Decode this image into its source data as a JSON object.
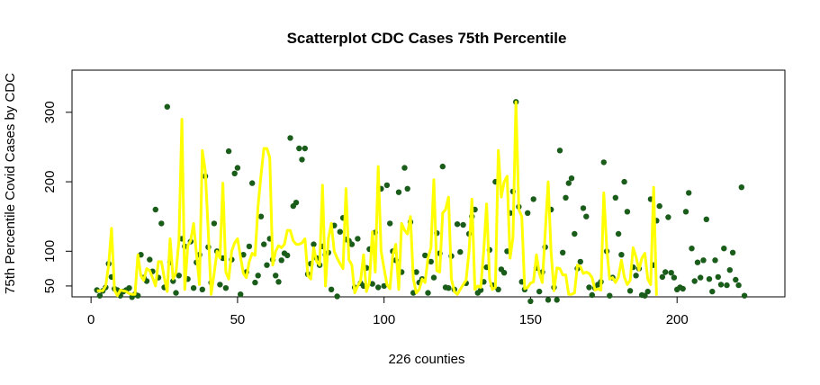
{
  "chart_data": {
    "type": "scatter",
    "title": "Scatterplot CDC Cases 75th Percentile",
    "xlabel": "226 counties",
    "ylabel": "75th Percentile Covid Cases by CDC",
    "xlim": [
      1,
      226
    ],
    "ylim": [
      35,
      316
    ],
    "xticks": [
      0,
      50,
      100,
      150,
      200
    ],
    "yticks": [
      50,
      100,
      200,
      300
    ],
    "grid": false,
    "point_color": "#1a5c1a",
    "line_color": "#ffff00",
    "points": [
      [
        2,
        44
      ],
      [
        3,
        36
      ],
      [
        4,
        43
      ],
      [
        5,
        48
      ],
      [
        6,
        82
      ],
      [
        7,
        63
      ],
      [
        8,
        46
      ],
      [
        9,
        44
      ],
      [
        10,
        36
      ],
      [
        11,
        42
      ],
      [
        12,
        44
      ],
      [
        13,
        47
      ],
      [
        14,
        34
      ],
      [
        15,
        38
      ],
      [
        16,
        36
      ],
      [
        17,
        95
      ],
      [
        18,
        62
      ],
      [
        19,
        57
      ],
      [
        20,
        88
      ],
      [
        21,
        71
      ],
      [
        22,
        160
      ],
      [
        23,
        62
      ],
      [
        24,
        140
      ],
      [
        25,
        48
      ],
      [
        26,
        308
      ],
      [
        27,
        84
      ],
      [
        28,
        57
      ],
      [
        29,
        40
      ],
      [
        30,
        65
      ],
      [
        31,
        118
      ],
      [
        32,
        107
      ],
      [
        33,
        60
      ],
      [
        34,
        114
      ],
      [
        35,
        47
      ],
      [
        36,
        84
      ],
      [
        37,
        95
      ],
      [
        38,
        45
      ],
      [
        39,
        208
      ],
      [
        40,
        106
      ],
      [
        41,
        55
      ],
      [
        42,
        140
      ],
      [
        43,
        100
      ],
      [
        44,
        52
      ],
      [
        45,
        90
      ],
      [
        46,
        47
      ],
      [
        47,
        244
      ],
      [
        48,
        88
      ],
      [
        49,
        212
      ],
      [
        50,
        220
      ],
      [
        51,
        38
      ],
      [
        52,
        95
      ],
      [
        53,
        70
      ],
      [
        54,
        107
      ],
      [
        55,
        198
      ],
      [
        56,
        55
      ],
      [
        57,
        65
      ],
      [
        58,
        150
      ],
      [
        59,
        110
      ],
      [
        60,
        80
      ],
      [
        61,
        118
      ],
      [
        62,
        88
      ],
      [
        63,
        65
      ],
      [
        64,
        56
      ],
      [
        65,
        87
      ],
      [
        66,
        97
      ],
      [
        67,
        94
      ],
      [
        68,
        263
      ],
      [
        69,
        165
      ],
      [
        70,
        170
      ],
      [
        71,
        248
      ],
      [
        72,
        232
      ],
      [
        73,
        248
      ],
      [
        74,
        67
      ],
      [
        75,
        82
      ],
      [
        76,
        110
      ],
      [
        77,
        90
      ],
      [
        78,
        80
      ],
      [
        79,
        107
      ],
      [
        80,
        95
      ],
      [
        81,
        98
      ],
      [
        82,
        45
      ],
      [
        83,
        137
      ],
      [
        84,
        35
      ],
      [
        85,
        128
      ],
      [
        86,
        148
      ],
      [
        87,
        117
      ],
      [
        88,
        115
      ],
      [
        89,
        110
      ],
      [
        90,
        48
      ],
      [
        91,
        118
      ],
      [
        92,
        54
      ],
      [
        93,
        50
      ],
      [
        94,
        76
      ],
      [
        95,
        103
      ],
      [
        96,
        53
      ],
      [
        97,
        127
      ],
      [
        98,
        48
      ],
      [
        99,
        190
      ],
      [
        100,
        50
      ],
      [
        101,
        195
      ],
      [
        102,
        140
      ],
      [
        103,
        100
      ],
      [
        104,
        87
      ],
      [
        105,
        185
      ],
      [
        106,
        70
      ],
      [
        107,
        220
      ],
      [
        108,
        190
      ],
      [
        109,
        142
      ],
      [
        110,
        40
      ],
      [
        111,
        70
      ],
      [
        112,
        55
      ],
      [
        113,
        60
      ],
      [
        114,
        94
      ],
      [
        115,
        40
      ],
      [
        116,
        85
      ],
      [
        117,
        62
      ],
      [
        118,
        126
      ],
      [
        119,
        97
      ],
      [
        120,
        222
      ],
      [
        121,
        48
      ],
      [
        122,
        47
      ],
      [
        123,
        93
      ],
      [
        124,
        45
      ],
      [
        125,
        139
      ],
      [
        126,
        99
      ],
      [
        127,
        138
      ],
      [
        128,
        54
      ],
      [
        129,
        125
      ],
      [
        130,
        150
      ],
      [
        131,
        160
      ],
      [
        132,
        40
      ],
      [
        133,
        44
      ],
      [
        134,
        56
      ],
      [
        135,
        77
      ],
      [
        136,
        102
      ],
      [
        137,
        51
      ],
      [
        138,
        200
      ],
      [
        139,
        45
      ],
      [
        140,
        74
      ],
      [
        141,
        69
      ],
      [
        142,
        100
      ],
      [
        143,
        155
      ],
      [
        144,
        186
      ],
      [
        145,
        315
      ],
      [
        146,
        164
      ],
      [
        147,
        56
      ],
      [
        148,
        45
      ],
      [
        149,
        155
      ],
      [
        150,
        28
      ],
      [
        151,
        175
      ],
      [
        152,
        76
      ],
      [
        153,
        42
      ],
      [
        154,
        70
      ],
      [
        155,
        106
      ],
      [
        156,
        30
      ],
      [
        157,
        160
      ],
      [
        158,
        48
      ],
      [
        159,
        30
      ],
      [
        160,
        245
      ],
      [
        161,
        98
      ],
      [
        162,
        177
      ],
      [
        163,
        198
      ],
      [
        164,
        205
      ],
      [
        165,
        125
      ],
      [
        166,
        75
      ],
      [
        167,
        85
      ],
      [
        168,
        162
      ],
      [
        169,
        150
      ],
      [
        170,
        48
      ],
      [
        171,
        37
      ],
      [
        172,
        47
      ],
      [
        173,
        52
      ],
      [
        174,
        56
      ],
      [
        175,
        228
      ],
      [
        176,
        100
      ],
      [
        177,
        36
      ],
      [
        178,
        62
      ],
      [
        179,
        177
      ],
      [
        180,
        125
      ],
      [
        181,
        95
      ],
      [
        182,
        200
      ],
      [
        183,
        157
      ],
      [
        184,
        43
      ],
      [
        185,
        77
      ],
      [
        186,
        65
      ],
      [
        187,
        75
      ],
      [
        188,
        37
      ],
      [
        189,
        36
      ],
      [
        190,
        42
      ],
      [
        191,
        175
      ],
      [
        192,
        80
      ],
      [
        193,
        144
      ],
      [
        194,
        165
      ],
      [
        195,
        63
      ],
      [
        196,
        70
      ],
      [
        197,
        149
      ],
      [
        198,
        69
      ],
      [
        199,
        62
      ],
      [
        200,
        45
      ],
      [
        201,
        48
      ],
      [
        202,
        46
      ],
      [
        203,
        157
      ],
      [
        204,
        184
      ],
      [
        205,
        104
      ],
      [
        206,
        57
      ],
      [
        207,
        84
      ],
      [
        208,
        62
      ],
      [
        209,
        87
      ],
      [
        210,
        146
      ],
      [
        211,
        60
      ],
      [
        212,
        42
      ],
      [
        213,
        87
      ],
      [
        214,
        63
      ],
      [
        215,
        52
      ],
      [
        216,
        104
      ],
      [
        217,
        51
      ],
      [
        218,
        73
      ],
      [
        219,
        98
      ],
      [
        220,
        59
      ],
      [
        221,
        51
      ],
      [
        222,
        192
      ],
      [
        223,
        36
      ]
    ],
    "line": [
      [
        2,
        43
      ],
      [
        3,
        43
      ],
      [
        4,
        43
      ],
      [
        5,
        50
      ],
      [
        6,
        80
      ],
      [
        7,
        133
      ],
      [
        8,
        44
      ],
      [
        9,
        36
      ],
      [
        10,
        44
      ],
      [
        11,
        43
      ],
      [
        12,
        42
      ],
      [
        13,
        39
      ],
      [
        14,
        38
      ],
      [
        15,
        38
      ],
      [
        16,
        95
      ],
      [
        17,
        65
      ],
      [
        18,
        58
      ],
      [
        19,
        75
      ],
      [
        20,
        72
      ],
      [
        21,
        62
      ],
      [
        22,
        50
      ],
      [
        23,
        85
      ],
      [
        24,
        85
      ],
      [
        25,
        62
      ],
      [
        26,
        42
      ],
      [
        27,
        118
      ],
      [
        28,
        60
      ],
      [
        29,
        69
      ],
      [
        30,
        115
      ],
      [
        31,
        290
      ],
      [
        32,
        45
      ],
      [
        33,
        108
      ],
      [
        34,
        115
      ],
      [
        35,
        140
      ],
      [
        36,
        96
      ],
      [
        37,
        52
      ],
      [
        38,
        245
      ],
      [
        39,
        215
      ],
      [
        40,
        128
      ],
      [
        41,
        38
      ],
      [
        42,
        68
      ],
      [
        43,
        100
      ],
      [
        44,
        90
      ],
      [
        45,
        198
      ],
      [
        46,
        70
      ],
      [
        47,
        60
      ],
      [
        48,
        100
      ],
      [
        49,
        112
      ],
      [
        50,
        118
      ],
      [
        51,
        92
      ],
      [
        52,
        68
      ],
      [
        53,
        62
      ],
      [
        54,
        85
      ],
      [
        55,
        97
      ],
      [
        56,
        94
      ],
      [
        57,
        165
      ],
      [
        58,
        210
      ],
      [
        59,
        248
      ],
      [
        60,
        248
      ],
      [
        61,
        235
      ],
      [
        62,
        80
      ],
      [
        63,
        100
      ],
      [
        64,
        108
      ],
      [
        65,
        105
      ],
      [
        66,
        110
      ],
      [
        67,
        130
      ],
      [
        68,
        130
      ],
      [
        69,
        115
      ],
      [
        70,
        110
      ],
      [
        71,
        110
      ],
      [
        72,
        112
      ],
      [
        73,
        118
      ],
      [
        74,
        65
      ],
      [
        75,
        60
      ],
      [
        76,
        105
      ],
      [
        77,
        85
      ],
      [
        78,
        80
      ],
      [
        79,
        195
      ],
      [
        80,
        50
      ],
      [
        81,
        118
      ],
      [
        82,
        140
      ],
      [
        83,
        100
      ],
      [
        84,
        90
      ],
      [
        85,
        82
      ],
      [
        86,
        75
      ],
      [
        87,
        190
      ],
      [
        88,
        88
      ],
      [
        89,
        80
      ],
      [
        90,
        40
      ],
      [
        91,
        50
      ],
      [
        92,
        57
      ],
      [
        93,
        95
      ],
      [
        94,
        42
      ],
      [
        95,
        55
      ],
      [
        96,
        128
      ],
      [
        97,
        70
      ],
      [
        98,
        222
      ],
      [
        99,
        100
      ],
      [
        100,
        75
      ],
      [
        101,
        52
      ],
      [
        102,
        46
      ],
      [
        103,
        95
      ],
      [
        104,
        110
      ],
      [
        105,
        45
      ],
      [
        106,
        140
      ],
      [
        107,
        130
      ],
      [
        108,
        125
      ],
      [
        109,
        150
      ],
      [
        110,
        60
      ],
      [
        111,
        40
      ],
      [
        112,
        45
      ],
      [
        113,
        60
      ],
      [
        114,
        55
      ],
      [
        115,
        90
      ],
      [
        116,
        105
      ],
      [
        117,
        203
      ],
      [
        118,
        72
      ],
      [
        119,
        70
      ],
      [
        120,
        155
      ],
      [
        121,
        160
      ],
      [
        122,
        178
      ],
      [
        123,
        60
      ],
      [
        124,
        42
      ],
      [
        125,
        38
      ],
      [
        126,
        45
      ],
      [
        127,
        52
      ],
      [
        128,
        58
      ],
      [
        129,
        100
      ],
      [
        130,
        175
      ],
      [
        131,
        45
      ],
      [
        132,
        50
      ],
      [
        133,
        48
      ],
      [
        134,
        100
      ],
      [
        135,
        168
      ],
      [
        136,
        60
      ],
      [
        137,
        45
      ],
      [
        138,
        48
      ],
      [
        139,
        245
      ],
      [
        140,
        178
      ],
      [
        141,
        200
      ],
      [
        142,
        208
      ],
      [
        143,
        90
      ],
      [
        144,
        120
      ],
      [
        145,
        315
      ],
      [
        146,
        160
      ],
      [
        147,
        150
      ],
      [
        148,
        46
      ],
      [
        149,
        48
      ],
      [
        150,
        54
      ],
      [
        151,
        56
      ],
      [
        152,
        95
      ],
      [
        153,
        68
      ],
      [
        154,
        55
      ],
      [
        155,
        126
      ],
      [
        156,
        200
      ],
      [
        157,
        100
      ],
      [
        158,
        43
      ],
      [
        159,
        76
      ],
      [
        160,
        75
      ],
      [
        161,
        66
      ],
      [
        162,
        66
      ],
      [
        163,
        38
      ],
      [
        164,
        38
      ],
      [
        165,
        40
      ],
      [
        166,
        80
      ],
      [
        167,
        78
      ],
      [
        168,
        68
      ],
      [
        169,
        70
      ],
      [
        170,
        68
      ],
      [
        171,
        62
      ],
      [
        172,
        44
      ],
      [
        173,
        46
      ],
      [
        174,
        44
      ],
      [
        175,
        184
      ],
      [
        176,
        104
      ],
      [
        177,
        60
      ],
      [
        178,
        62
      ],
      [
        179,
        55
      ],
      [
        180,
        63
      ],
      [
        181,
        87
      ],
      [
        182,
        63
      ],
      [
        183,
        52
      ],
      [
        184,
        58
      ],
      [
        185,
        105
      ],
      [
        186,
        92
      ],
      [
        187,
        73
      ],
      [
        188,
        90
      ],
      [
        189,
        97
      ],
      [
        190,
        60
      ],
      [
        191,
        52
      ],
      [
        192,
        192
      ],
      [
        193,
        36
      ]
    ]
  }
}
